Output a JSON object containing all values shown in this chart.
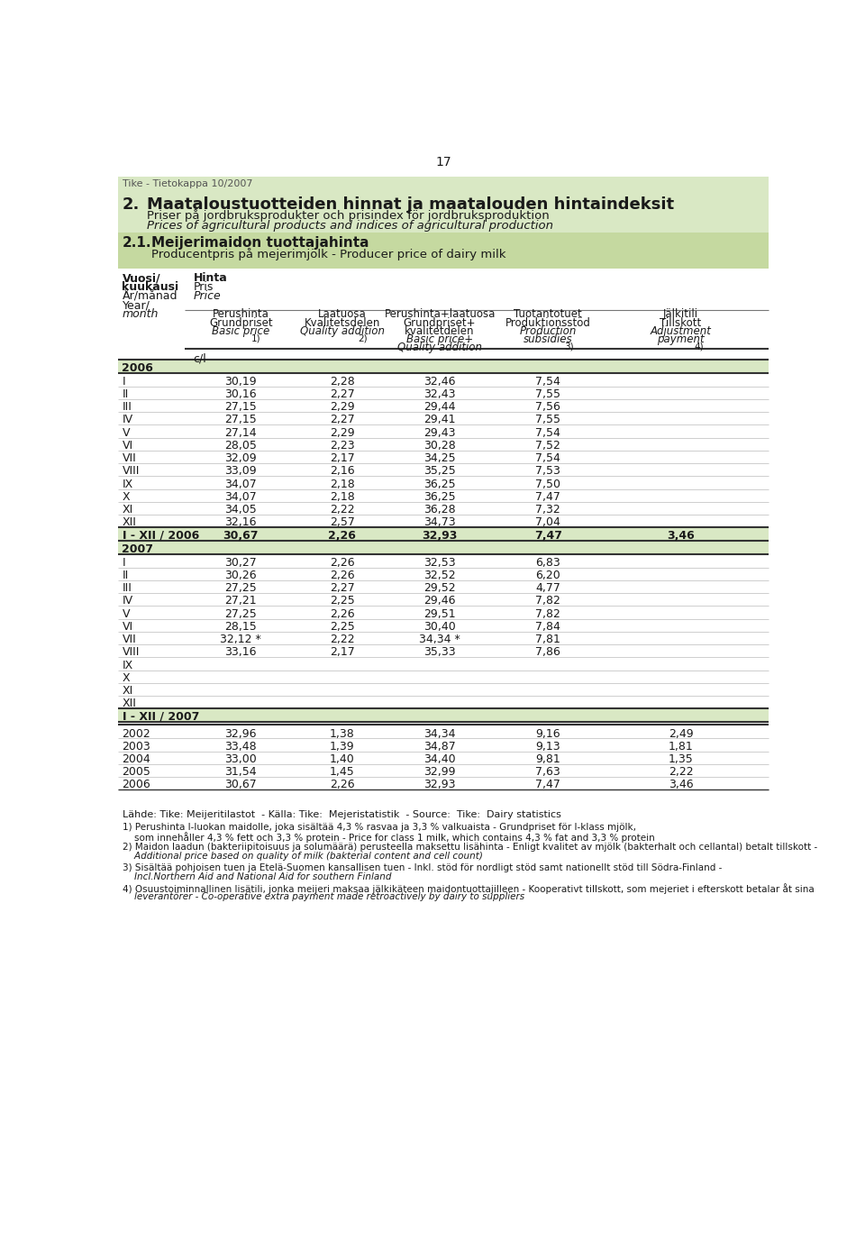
{
  "page_number": "17",
  "header_tag": "Tike - Tietokappa 10/2007",
  "section_number": "2.",
  "section_title": "Maataloustuotteiden hinnat ja maatalouden hintaindeksit",
  "section_subtitle1": "Priser på jordbruksprodukter och prisindex för jordbruksproduktion",
  "section_subtitle2": "Prices of agricultural products and indices of agricultural production",
  "subsection_number": "2.1.",
  "subsection_title": "Meijerimaidon tuottajahinta",
  "subsection_subtitle": "Producentpris på mejerimjölk - Producer price of dairy milk",
  "label1": "Vuosi/",
  "label2": "kuukausi",
  "label3": "År/månad",
  "label4": "Year/",
  "label5": "month",
  "hinta1": "Hinta",
  "hinta2": "Pris",
  "hinta3": "Price",
  "unit": "c/l",
  "data_2006": [
    [
      "I",
      "30,19",
      "2,28",
      "32,46",
      "7,54",
      ""
    ],
    [
      "II",
      "30,16",
      "2,27",
      "32,43",
      "7,55",
      ""
    ],
    [
      "III",
      "27,15",
      "2,29",
      "29,44",
      "7,56",
      ""
    ],
    [
      "IV",
      "27,15",
      "2,27",
      "29,41",
      "7,55",
      ""
    ],
    [
      "V",
      "27,14",
      "2,29",
      "29,43",
      "7,54",
      ""
    ],
    [
      "VI",
      "28,05",
      "2,23",
      "30,28",
      "7,52",
      ""
    ],
    [
      "VII",
      "32,09",
      "2,17",
      "34,25",
      "7,54",
      ""
    ],
    [
      "VIII",
      "33,09",
      "2,16",
      "35,25",
      "7,53",
      ""
    ],
    [
      "IX",
      "34,07",
      "2,18",
      "36,25",
      "7,50",
      ""
    ],
    [
      "X",
      "34,07",
      "2,18",
      "36,25",
      "7,47",
      ""
    ],
    [
      "XI",
      "34,05",
      "2,22",
      "36,28",
      "7,32",
      ""
    ],
    [
      "XII",
      "32,16",
      "2,57",
      "34,73",
      "7,04",
      ""
    ]
  ],
  "summary_2006": [
    "I - XII / 2006",
    "30,67",
    "2,26",
    "32,93",
    "7,47",
    "3,46"
  ],
  "data_2007": [
    [
      "I",
      "30,27",
      "2,26",
      "32,53",
      "6,83",
      ""
    ],
    [
      "II",
      "30,26",
      "2,26",
      "32,52",
      "6,20",
      ""
    ],
    [
      "III",
      "27,25",
      "2,27",
      "29,52",
      "4,77",
      ""
    ],
    [
      "IV",
      "27,21",
      "2,25",
      "29,46",
      "7,82",
      ""
    ],
    [
      "V",
      "27,25",
      "2,26",
      "29,51",
      "7,82",
      ""
    ],
    [
      "VI",
      "28,15",
      "2,25",
      "30,40",
      "7,84",
      ""
    ],
    [
      "VII",
      "32,12 *",
      "2,22",
      "34,34 *",
      "7,81",
      ""
    ],
    [
      "VIII",
      "33,16",
      "2,17",
      "35,33",
      "7,86",
      ""
    ],
    [
      "IX",
      "",
      "",
      "",
      "",
      ""
    ],
    [
      "X",
      "",
      "",
      "",
      "",
      ""
    ],
    [
      "XI",
      "",
      "",
      "",
      "",
      ""
    ],
    [
      "XII",
      "",
      "",
      "",
      "",
      ""
    ]
  ],
  "summary_2007": [
    "I - XII / 2007",
    "",
    "",
    "",
    "",
    ""
  ],
  "annual_data": [
    [
      "2002",
      "32,96",
      "1,38",
      "34,34",
      "9,16",
      "2,49"
    ],
    [
      "2003",
      "33,48",
      "1,39",
      "34,87",
      "9,13",
      "1,81"
    ],
    [
      "2004",
      "33,00",
      "1,40",
      "34,40",
      "9,81",
      "1,35"
    ],
    [
      "2005",
      "31,54",
      "1,45",
      "32,99",
      "7,63",
      "2,22"
    ],
    [
      "2006",
      "30,67",
      "2,26",
      "32,93",
      "7,47",
      "3,46"
    ]
  ],
  "footnote_source": "Lähde: Tike: Meijeritilastot  - Källa: Tike:  Mejeristatistik  - Source:  Tike:  Dairy statistics",
  "footnote1a": "1) Perushinta I-luokan maidolle, joka sisältää 4,3 % rasvaa ja 3,3 % valkuaista - Grundpriset för I-klass mjölk,",
  "footnote1b": "    som innehåller 4,3 % fett och 3,3 % protein - Price for class 1 milk, which contains 4,3 % fat and 3,3 % protein",
  "footnote2a": "2) Maidon laadun (bakteriipitoisuus ja solumäärä) perusteella maksettu lisähinta - Enligt kvalitet av mjölk (bakterhalt och cellantal) betalt tillskott -",
  "footnote2b": "    Additional price based on quality of milk (bakterial content and cell count)",
  "footnote3a": "3) Sisältää pohjoisen tuen ja Etelä-Suomen kansallisen tuen - Inkl. stöd för nordligt stöd samt nationellt stöd till Södra-Finland -",
  "footnote3b": "    Incl.Northern Aid and National Aid for southern Finland",
  "footnote4a": "4) Osuustoiminnallinen lisätili, jonka meijeri maksaa jälkikäteen maidontuottajilleen - Kooperativt tillskott, som mejeriet i efterskott betalar åt sina",
  "footnote4b": "    leverantörer - Co-operative extra payment made retroactively by dairy to suppliers",
  "bg_light_green": "#d9e8c4",
  "bg_header_green": "#c5d9a0",
  "bg_white": "#ffffff",
  "text_dark": "#1a1a1a",
  "border_color": "#555555"
}
